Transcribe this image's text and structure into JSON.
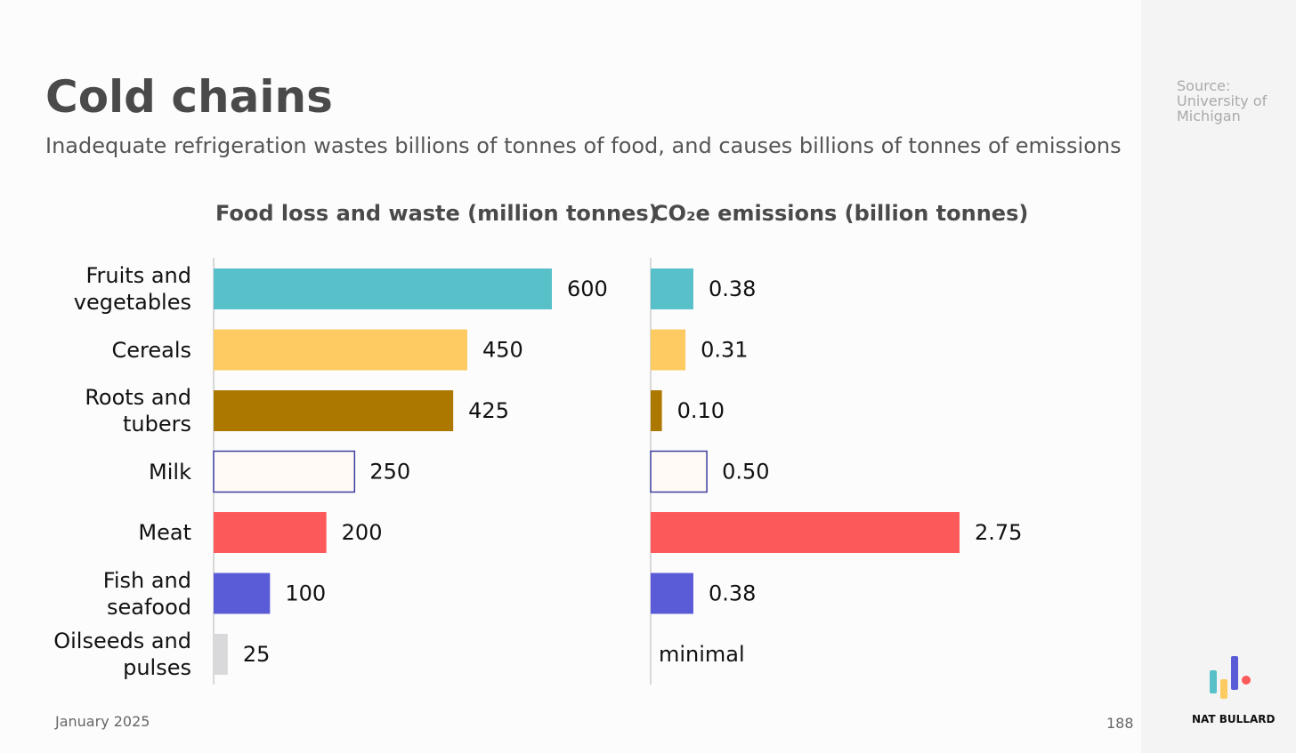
{
  "slide": {
    "title": "Cold chains",
    "subtitle": "Inadequate refrigeration wastes billions of tonnes of food, and causes billions of tonnes of emissions",
    "source": "Source: University of Michigan",
    "date": "January 2025",
    "page": "188",
    "brand": "NAT BULLARD"
  },
  "chart_data": [
    {
      "type": "barh",
      "title": "Food loss and waste (million tonnes)",
      "categories": [
        "Fruits and vegetables",
        "Cereals",
        "Roots and tubers",
        "Milk",
        "Meat",
        "Fish and seafood",
        "Oilseeds and pulses"
      ],
      "values": [
        600,
        450,
        425,
        250,
        200,
        100,
        25
      ],
      "colors": [
        "#57c0c8",
        "#fdcb62",
        "#ad7800",
        "#fffaf5",
        "#fc5a5a",
        "#5a5bd6",
        "#d9d8da"
      ],
      "edgecolors": [
        null,
        null,
        null,
        "#3d3e9e",
        null,
        null,
        null
      ],
      "xlim": [
        0,
        600
      ]
    },
    {
      "type": "barh",
      "title": "CO₂e emissions (billion tonnes)",
      "values": [
        0.38,
        0.31,
        0.1,
        0.5,
        2.75,
        0.38,
        null
      ],
      "value_labels": [
        "0.38",
        "0.31",
        "0.10",
        "0.50",
        "2.75",
        "0.38",
        "minimal"
      ],
      "colors": [
        "#57c0c8",
        "#fdcb62",
        "#ad7800",
        "#fffaf5",
        "#fc5a5a",
        "#5a5bd6",
        "#d9d8da"
      ],
      "edgecolors": [
        null,
        null,
        null,
        "#3d3e9e",
        null,
        null,
        null
      ],
      "xlim": [
        0,
        2.75
      ]
    }
  ]
}
